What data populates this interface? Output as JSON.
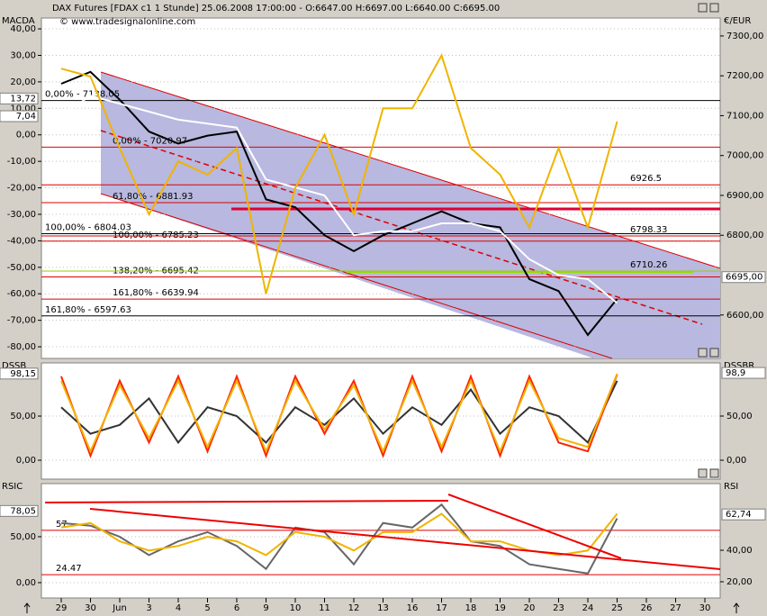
{
  "chart_data": [
    {
      "type": "line",
      "title": "MACDA",
      "y2_label": "€/EUR",
      "header": "DAX Futures [FDAX c1  1 Stunde] 25.06.2008 17:00:00 - O:6647.00 H:6697.00 L:6640.00 C:6695.00",
      "watermark": "© www.tradesignalonline.com",
      "ylim": [
        -84.4,
        44.1
      ],
      "yticks": [
        {
          "value": 40,
          "label": "40,00"
        },
        {
          "value": 30,
          "label": "30,00"
        },
        {
          "value": 20,
          "label": "20,00"
        },
        {
          "value": 10,
          "label": "10,00"
        },
        {
          "value": 0,
          "label": "0,00"
        },
        {
          "value": -10,
          "label": "-10,00"
        },
        {
          "value": -20,
          "label": "-20,00"
        },
        {
          "value": -30,
          "label": "-30,00"
        },
        {
          "value": -40,
          "label": "-40,00"
        },
        {
          "value": -50,
          "label": "-50,00"
        },
        {
          "value": -60,
          "label": "-60,00"
        },
        {
          "value": -70,
          "label": "-70,00"
        },
        {
          "value": -80,
          "label": "-80,00"
        }
      ],
      "y2lim": [
        6491,
        7345
      ],
      "y2ticks": [
        {
          "value": 7300,
          "label": "7300,00"
        },
        {
          "value": 7200,
          "label": "7200,00"
        },
        {
          "value": 7100,
          "label": "7100,00"
        },
        {
          "value": 7000,
          "label": "7000,00"
        },
        {
          "value": 6900,
          "label": "6900,00"
        },
        {
          "value": 6800,
          "label": "6800,00"
        },
        {
          "value": 6600,
          "label": "6600,00"
        }
      ],
      "series": [
        {
          "color": "#000000",
          "axis": "y2",
          "values": [
            7180,
            7210,
            7140,
            7060,
            7030,
            7050,
            7060,
            6890,
            6870,
            6800,
            6760,
            6800,
            6830,
            6860,
            6830,
            6820,
            6690,
            6660,
            6550,
            6640,
            null,
            null,
            null
          ]
        },
        {
          "color": "#ffffff",
          "axis": "y2",
          "values": [
            7100,
            7150,
            7130,
            7110,
            7090,
            7080,
            7070,
            6940,
            6920,
            6900,
            6800,
            6810,
            6810,
            6830,
            6830,
            6810,
            6740,
            6700,
            6690,
            6630,
            null,
            null,
            null
          ]
        },
        {
          "color": "#f0b400",
          "axis": "y",
          "values": [
            25,
            22,
            -5,
            -30,
            -10,
            -15,
            -5,
            -60,
            -20,
            0,
            -30,
            10,
            10,
            30,
            -5,
            -15,
            -35,
            -5,
            -35,
            5,
            null,
            null,
            null
          ]
        }
      ],
      "levels": [
        {
          "value": 7138.05,
          "label": "0,00% - 7138.05",
          "color": "#000000",
          "axis": "y2"
        },
        {
          "value": 7020.97,
          "label": "0,00% - 7020.97",
          "color": "#dd0000",
          "axis": "y2"
        },
        {
          "value": 6881.93,
          "label": "61,80% - 6881.93",
          "color": "#dd0000",
          "axis": "y2"
        },
        {
          "value": 6804.03,
          "label": "100,00% - 6804.03",
          "color": "#000000",
          "axis": "y2"
        },
        {
          "value": 6785.23,
          "label": "100,00% - 6785.23",
          "color": "#dd0000",
          "axis": "y2"
        },
        {
          "value": 6695.42,
          "label": "138,20% - 6695.42",
          "color": "#dd0000",
          "axis": "y2"
        },
        {
          "value": 6639.94,
          "label": "161,80% - 6639.94",
          "color": "#dd0000",
          "axis": "y2"
        },
        {
          "value": 6597.63,
          "label": "161,80% - 6597.63",
          "color": "#000000",
          "axis": "y2"
        }
      ],
      "right_levels": [
        {
          "value": 6926.5,
          "color": "#dd0000"
        },
        {
          "value": 6798.33,
          "color": "#dd0000"
        },
        {
          "value": 6710.26,
          "color": "#99cc00"
        }
      ],
      "current_values": [
        {
          "value": 13.72,
          "label": "13,72",
          "axis": "y"
        },
        {
          "value": 7.04,
          "label": "7,04",
          "axis": "y"
        },
        {
          "value": 6695,
          "label": "6695,00",
          "axis": "y2"
        }
      ],
      "grid": true
    },
    {
      "type": "line",
      "title": "DSSB",
      "y2_label": "DSSBR",
      "ylim": [
        -21.4,
        110.2
      ],
      "yticks": [
        {
          "value": 0,
          "label": "0,00"
        },
        {
          "value": 50,
          "label": "50,00"
        }
      ],
      "y2lim": [
        -21.4,
        110.2
      ],
      "y2ticks": [
        {
          "value": 0,
          "label": "0,00"
        },
        {
          "value": 50,
          "label": "50,00"
        }
      ],
      "series": [
        {
          "color": "#333333",
          "axis": "y",
          "values": [
            60,
            30,
            40,
            70,
            20,
            60,
            50,
            20,
            60,
            40,
            70,
            30,
            60,
            40,
            80,
            30,
            60,
            50,
            20,
            90,
            null,
            null,
            null
          ]
        },
        {
          "color": "#ff2200",
          "axis": "y",
          "values": [
            95,
            5,
            90,
            20,
            95,
            10,
            95,
            5,
            95,
            30,
            90,
            5,
            95,
            10,
            95,
            5,
            95,
            20,
            10,
            97,
            null,
            null,
            null
          ]
        },
        {
          "color": "#f0b400",
          "axis": "y",
          "values": [
            90,
            10,
            85,
            25,
            90,
            15,
            90,
            10,
            90,
            35,
            85,
            10,
            90,
            15,
            90,
            10,
            90,
            25,
            15,
            98,
            null,
            null,
            null
          ]
        }
      ],
      "current_values": [
        {
          "value": 98.15,
          "label": "98,15",
          "axis": "y"
        },
        {
          "value": 98.9,
          "label": "98,9",
          "axis": "y2"
        }
      ],
      "grid": true
    },
    {
      "type": "line",
      "title": "RSIC",
      "y2_label": "RSI",
      "categories": [
        "29",
        "30",
        "Jun",
        "3",
        "4",
        "5",
        "6",
        "9",
        "10",
        "11",
        "12",
        "13",
        "16",
        "17",
        "18",
        "19",
        "20",
        "23",
        "24",
        "25",
        "26",
        "27",
        "30"
      ],
      "ylim": [
        -16.7,
        107.8
      ],
      "yticks": [
        {
          "value": 0,
          "label": "0,00"
        },
        {
          "value": 50,
          "label": "50,00"
        }
      ],
      "y2lim": [
        9.7,
        82.3
      ],
      "y2ticks": [
        {
          "value": 20,
          "label": "20,00"
        },
        {
          "value": 40,
          "label": "40,00"
        }
      ],
      "series": [
        {
          "color": "#666666",
          "axis": "y",
          "values": [
            65,
            62,
            50,
            30,
            45,
            55,
            40,
            15,
            60,
            55,
            20,
            65,
            60,
            85,
            45,
            40,
            20,
            15,
            10,
            70,
            null,
            null,
            null
          ]
        },
        {
          "color": "#f0b400",
          "axis": "y",
          "values": [
            60,
            65,
            45,
            35,
            40,
            50,
            45,
            30,
            55,
            50,
            35,
            55,
            55,
            75,
            45,
            45,
            35,
            30,
            35,
            75,
            null,
            null,
            null
          ]
        }
      ],
      "levels": [
        {
          "value": 57,
          "label": 57,
          "color": "#dd0000",
          "axis": "y"
        },
        {
          "value": 24.47,
          "label": "24.47",
          "color": "#dd0000",
          "axis": "y2"
        }
      ],
      "current_values": [
        {
          "value": 78.05,
          "label": "78,05",
          "axis": "y"
        },
        {
          "value": 62.74,
          "label": "62,74",
          "axis": "y2"
        }
      ],
      "grid": true
    }
  ]
}
